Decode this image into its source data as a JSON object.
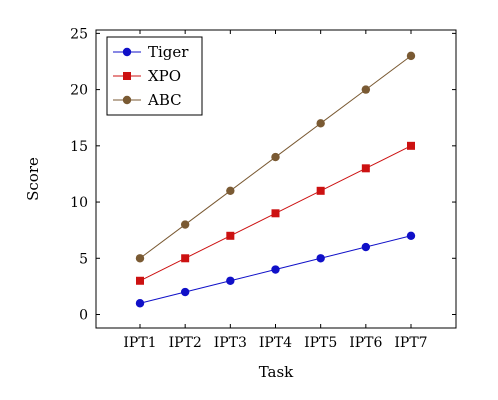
{
  "chart_data": {
    "type": "line",
    "xlabel": "Task",
    "ylabel": "Score",
    "categories": [
      "IPT1",
      "IPT2",
      "IPT3",
      "IPT4",
      "IPT5",
      "IPT6",
      "IPT7"
    ],
    "ylim": [
      -1.2,
      25.3
    ],
    "yticks": [
      0,
      5,
      10,
      15,
      20,
      25
    ],
    "grid": false,
    "legend_position": "top-left",
    "series": [
      {
        "name": "Tiger",
        "values": [
          1,
          2,
          3,
          4,
          5,
          6,
          7
        ],
        "color": "#1010c8",
        "marker": "circle"
      },
      {
        "name": "XPO",
        "values": [
          3,
          5,
          7,
          9,
          11,
          13,
          15
        ],
        "color": "#cc1111",
        "marker": "square"
      },
      {
        "name": "ABC",
        "values": [
          5,
          8,
          11,
          14,
          17,
          20,
          23
        ],
        "color": "#7a5a33",
        "marker": "circle"
      }
    ]
  }
}
